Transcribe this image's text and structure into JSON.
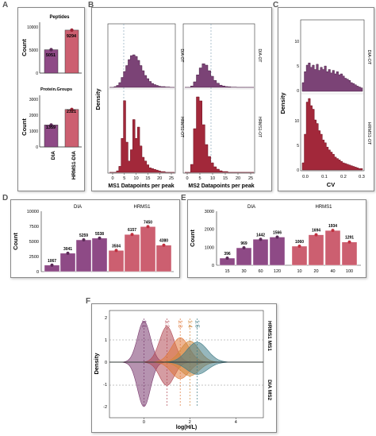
{
  "panel_letters": [
    "A",
    "B",
    "C",
    "D",
    "E",
    "F"
  ],
  "colors": {
    "dia": "#8e4a86",
    "dia_dark": "#5b2a57",
    "hrms1": "#cc5f70",
    "hrms1_dark": "#9d2437",
    "hrms1_red": "#c0303f",
    "ratio_1_1": "#7a3b6f",
    "ratio_1_2": "#b24a55",
    "ratio_1_3": "#e0783a",
    "ratio_1_4": "#d1893c",
    "ratio_1_5": "#3f7c86"
  },
  "panel_a": {
    "top": {
      "title": "Peptides",
      "ylabel": "Count",
      "yticks": [
        "0",
        "5000",
        "10000"
      ],
      "labels": [
        "5051",
        "9294"
      ],
      "values": [
        5051,
        9294
      ],
      "ymax": 11000
    },
    "bottom": {
      "title": "Protein.Groups",
      "ylabel": "Count",
      "yticks": [
        "0",
        "1000",
        "2000",
        "3000"
      ],
      "labels": [
        "1359",
        "2321"
      ],
      "values": [
        1359,
        2321
      ],
      "ymax": 3200
    },
    "xlabels": [
      "DIA",
      "HRMS1-DIA"
    ]
  },
  "panel_b": {
    "ylabel": "Density",
    "left_xlabel": "MS1 Datapoints per peak",
    "left_xticks": [
      "0",
      "5",
      "10",
      "15",
      "20",
      "25"
    ],
    "right_xlabel": "MS2 Datapoints per peak",
    "right_xticks": [
      "0",
      "5",
      "10",
      "15",
      "20",
      "25"
    ],
    "facet_top": "DIA-OT",
    "facet_bottom": "HRMS1-OT"
  },
  "panel_c": {
    "ylabel": "Density",
    "xlabel": "CV",
    "xticks": [
      "0.0",
      "0.1",
      "0.2",
      "0.3"
    ],
    "top_yticks": [
      "0",
      "5",
      "10"
    ],
    "bottom_yticks": [
      "0",
      "5",
      "10"
    ],
    "facet_top": "DIA-OT",
    "facet_bottom": "HRMS1-OT"
  },
  "panel_d": {
    "ylabel": "Count",
    "yticks": [
      "0",
      "2500",
      "5000",
      "7500",
      "10000"
    ],
    "groups": [
      {
        "name": "DIA",
        "labels": [
          "1067",
          "3041",
          "5259",
          "5538"
        ],
        "values": [
          1067,
          3041,
          5259,
          5538
        ]
      },
      {
        "name": "HRMS1",
        "labels": [
          "3504",
          "6157",
          "7450",
          "4380"
        ],
        "values": [
          3504,
          6157,
          7450,
          4380
        ]
      }
    ],
    "ymax": 10000
  },
  "panel_e": {
    "ylabel": "Count",
    "yticks": [
      "0",
      "1000",
      "2000",
      "3000"
    ],
    "groups": [
      {
        "name": "DIA",
        "xticks": [
          "15",
          "30",
          "60",
          "120"
        ],
        "labels": [
          "396",
          "969",
          "1442",
          "1566"
        ],
        "values": [
          396,
          969,
          1442,
          1566
        ]
      },
      {
        "name": "HRMS1",
        "xticks": [
          "10",
          "20",
          "40",
          "100"
        ],
        "labels": [
          "1060",
          "1694",
          "1934",
          "1291"
        ],
        "values": [
          1060,
          1694,
          1934,
          1291
        ]
      }
    ],
    "ymax": 3000
  },
  "panel_f": {
    "ylabel": "Density",
    "xlabel": "log(H/L)",
    "xticks": [
      "0",
      "2",
      "4"
    ],
    "yticks": [
      "2",
      "1",
      "0",
      "-1",
      "-2"
    ],
    "ratio_labels": [
      "1:1",
      "1:2",
      "1:3",
      "1:4",
      "1:5"
    ],
    "facet_top": "HRMS1 MS1",
    "facet_bottom": "DIA MS2"
  },
  "chart_data": [
    {
      "type": "bar",
      "title": "Peptides",
      "categories": [
        "DIA",
        "HRMS1-DIA"
      ],
      "values": [
        5051,
        9294
      ],
      "ylabel": "Count",
      "ylim": [
        0,
        11000
      ]
    },
    {
      "type": "bar",
      "title": "Protein.Groups",
      "categories": [
        "DIA",
        "HRMS1-DIA"
      ],
      "values": [
        1359,
        2321
      ],
      "ylabel": "Count",
      "ylim": [
        0,
        3200
      ]
    },
    {
      "type": "bar",
      "ylabel": "Count",
      "categories": [
        "DIA-1",
        "DIA-2",
        "DIA-3",
        "DIA-4",
        "HRMS1-1",
        "HRMS1-2",
        "HRMS1-3",
        "HRMS1-4"
      ],
      "values": [
        1067,
        3041,
        5259,
        5538,
        3504,
        6157,
        7450,
        4380
      ],
      "ylim": [
        0,
        10000
      ]
    },
    {
      "type": "bar",
      "ylabel": "Count",
      "categories": [
        "DIA 15",
        "DIA 30",
        "DIA 60",
        "DIA 120",
        "HRMS1 10",
        "HRMS1 20",
        "HRMS1 40",
        "HRMS1 100"
      ],
      "values": [
        396,
        969,
        1442,
        1566,
        1060,
        1694,
        1934,
        1291
      ],
      "ylim": [
        0,
        3000
      ]
    }
  ]
}
